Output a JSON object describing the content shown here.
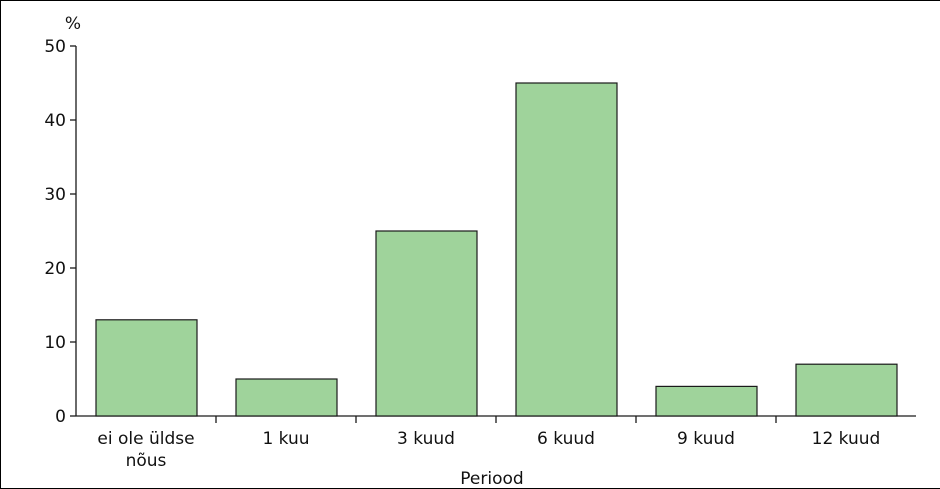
{
  "chart_data": {
    "type": "bar",
    "ylabel": "%",
    "xlabel": "Periood",
    "categories": [
      [
        "ei ole üldse",
        "nõus"
      ],
      [
        "1 kuu"
      ],
      [
        "3 kuud"
      ],
      [
        "6 kuud"
      ],
      [
        "9 kuud"
      ],
      [
        "12 kuud"
      ]
    ],
    "values": [
      13,
      5,
      25,
      45,
      4,
      7
    ],
    "ylim": [
      0,
      50
    ],
    "yticks": [
      0,
      10,
      20,
      30,
      40,
      50
    ],
    "grid": false,
    "legend": "none",
    "colors": {
      "bar_fill": "#9fd39b",
      "bar_stroke": "#1a1a1a",
      "axis": "#1a1a1a"
    }
  }
}
